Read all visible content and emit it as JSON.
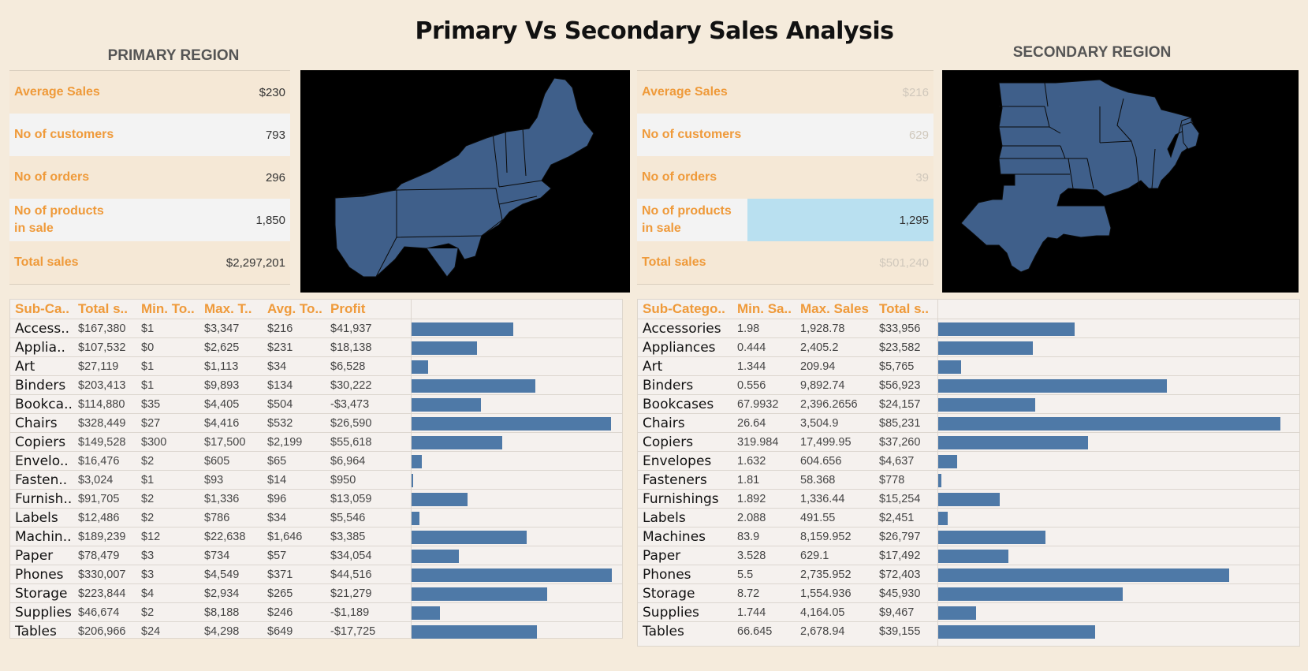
{
  "title": "Primary Vs Secondary Sales Analysis",
  "primary": {
    "region_title": "PRIMARY REGION",
    "kpis": [
      {
        "label": "Average Sales",
        "value": "$230"
      },
      {
        "label": "No of customers",
        "value": "793"
      },
      {
        "label": "No of orders",
        "value": "296"
      },
      {
        "label": "No of products in sale",
        "value": "1,850"
      },
      {
        "label": "Total sales",
        "value": "$2,297,201"
      }
    ]
  },
  "secondary": {
    "region_title": "SECONDARY REGION",
    "kpis": [
      {
        "label": "Average Sales",
        "value": "$216"
      },
      {
        "label": "No of customers",
        "value": "629"
      },
      {
        "label": "No of orders",
        "value": "39"
      },
      {
        "label": "No of products in sale",
        "value": "1,295"
      },
      {
        "label": "Total sales",
        "value": "$501,240"
      }
    ]
  },
  "colors": {
    "bar": "#4e79a7",
    "accent": "#ef9a3a",
    "background": "#f5ebdc",
    "map_fill": "#3f5f8a"
  },
  "chart_data": [
    {
      "type": "table",
      "columns": [
        "Sub-Ca..",
        "Total s..",
        "Min. To..",
        "Max. T..",
        "Avg. To..",
        "Profit"
      ],
      "categories": [
        "Access..",
        "Applia..",
        "Art",
        "Binders",
        "Bookca..",
        "Chairs",
        "Copiers",
        "Envelo..",
        "Fasten..",
        "Furnish..",
        "Labels",
        "Machin..",
        "Paper",
        "Phones",
        "Storage",
        "Supplies",
        "Tables"
      ],
      "total_sales": [
        "$167,380",
        "$107,532",
        "$27,119",
        "$203,413",
        "$114,880",
        "$328,449",
        "$149,528",
        "$16,476",
        "$3,024",
        "$91,705",
        "$12,486",
        "$189,239",
        "$78,479",
        "$330,007",
        "$223,844",
        "$46,674",
        "$206,966"
      ],
      "min_total": [
        "$1",
        "$0",
        "$1",
        "$1",
        "$35",
        "$27",
        "$300",
        "$2",
        "$1",
        "$2",
        "$2",
        "$12",
        "$3",
        "$3",
        "$4",
        "$2",
        "$24"
      ],
      "max_total": [
        "$3,347",
        "$2,625",
        "$1,113",
        "$9,893",
        "$4,405",
        "$4,416",
        "$17,500",
        "$605",
        "$93",
        "$1,336",
        "$786",
        "$22,638",
        "$734",
        "$4,549",
        "$2,934",
        "$8,188",
        "$4,298"
      ],
      "avg_total": [
        "$216",
        "$231",
        "$34",
        "$134",
        "$504",
        "$532",
        "$2,199",
        "$65",
        "$14",
        "$96",
        "$34",
        "$1,646",
        "$57",
        "$371",
        "$265",
        "$246",
        "$649"
      ],
      "profit": [
        "$41,937",
        "$18,138",
        "$6,528",
        "$30,222",
        "-$3,473",
        "$26,590",
        "$55,618",
        "$6,964",
        "$950",
        "$13,059",
        "$5,546",
        "$3,385",
        "$34,054",
        "$44,516",
        "$21,279",
        "-$1,189",
        "-$17,725"
      ],
      "bar_values": [
        167380,
        107532,
        27119,
        203413,
        114880,
        328449,
        149528,
        16476,
        3024,
        91705,
        12486,
        189239,
        78479,
        330007,
        223844,
        46674,
        206966
      ],
      "bar_max": 330007
    },
    {
      "type": "table",
      "columns": [
        "Sub-Catego..",
        "Min. Sa..",
        "Max. Sales",
        "Total s.."
      ],
      "categories": [
        "Accessories",
        "Appliances",
        "Art",
        "Binders",
        "Bookcases",
        "Chairs",
        "Copiers",
        "Envelopes",
        "Fasteners",
        "Furnishings",
        "Labels",
        "Machines",
        "Paper",
        "Phones",
        "Storage",
        "Supplies",
        "Tables"
      ],
      "min_sales": [
        "1.98",
        "0.444",
        "1.344",
        "0.556",
        "67.9932",
        "26.64",
        "319.984",
        "1.632",
        "1.81",
        "1.892",
        "2.088",
        "83.9",
        "3.528",
        "5.5",
        "8.72",
        "1.744",
        "66.645"
      ],
      "max_sales": [
        "1,928.78",
        "2,405.2",
        "209.94",
        "9,892.74",
        "2,396.2656",
        "3,504.9",
        "17,499.95",
        "604.656",
        "58.368",
        "1,336.44",
        "491.55",
        "8,159.952",
        "629.1",
        "2,735.952",
        "1,554.936",
        "4,164.05",
        "2,678.94"
      ],
      "total_sales": [
        "$33,956",
        "$23,582",
        "$5,765",
        "$56,923",
        "$24,157",
        "$85,231",
        "$37,260",
        "$4,637",
        "$778",
        "$15,254",
        "$2,451",
        "$26,797",
        "$17,492",
        "$72,403",
        "$45,930",
        "$9,467",
        "$39,155"
      ],
      "bar_values": [
        33956,
        23582,
        5765,
        56923,
        24157,
        85231,
        37260,
        4637,
        778,
        15254,
        2451,
        26797,
        17492,
        72403,
        45930,
        9467,
        39155
      ],
      "bar_max": 85231
    }
  ]
}
